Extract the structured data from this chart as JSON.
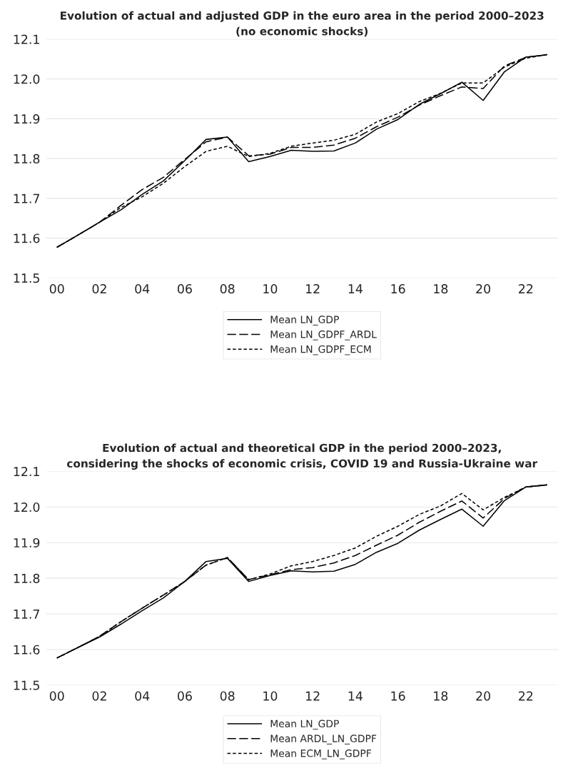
{
  "chart_data": [
    {
      "type": "line",
      "title": "Evolution of actual and adjusted GDP in the euro area in the period 2000–2023\n(no economic shocks)",
      "x": [
        2000,
        2001,
        2002,
        2003,
        2004,
        2005,
        2006,
        2007,
        2008,
        2009,
        2010,
        2011,
        2012,
        2013,
        2014,
        2015,
        2016,
        2017,
        2018,
        2019,
        2020,
        2021,
        2022,
        2023
      ],
      "series": [
        {
          "name": "Mean LN_GDP",
          "color": "#000000",
          "line_style": "solid",
          "values": [
            11.577,
            11.608,
            11.64,
            11.671,
            11.71,
            11.744,
            11.795,
            11.848,
            11.854,
            11.792,
            11.805,
            11.821,
            11.818,
            11.819,
            11.839,
            11.874,
            11.898,
            11.936,
            11.963,
            11.992,
            11.946,
            12.018,
            12.055,
            12.061
          ]
        },
        {
          "name": "Mean LN_GDPF_ARDL",
          "color": "#000000",
          "line_style": "dashed",
          "values": [
            11.577,
            11.608,
            11.64,
            11.682,
            11.722,
            11.753,
            11.798,
            11.842,
            11.854,
            11.807,
            11.811,
            11.828,
            11.828,
            11.834,
            11.851,
            11.88,
            11.904,
            11.934,
            11.958,
            11.98,
            11.976,
            12.033,
            12.054,
            12.061
          ]
        },
        {
          "name": "Mean LN_GDPF_ECM",
          "color": "#000000",
          "line_style": "dotted",
          "values": [
            11.577,
            11.608,
            11.64,
            11.677,
            11.704,
            11.738,
            11.78,
            11.818,
            11.831,
            11.805,
            11.813,
            11.831,
            11.839,
            11.846,
            11.861,
            11.892,
            11.913,
            11.943,
            11.964,
            11.99,
            11.99,
            12.03,
            12.052,
            12.061
          ]
        }
      ],
      "xlim": [
        1999.5,
        2023.5
      ],
      "xticks": [
        {
          "value": 2000,
          "label": "00"
        },
        {
          "value": 2002,
          "label": "02"
        },
        {
          "value": 2004,
          "label": "04"
        },
        {
          "value": 2006,
          "label": "06"
        },
        {
          "value": 2008,
          "label": "08"
        },
        {
          "value": 2010,
          "label": "10"
        },
        {
          "value": 2012,
          "label": "12"
        },
        {
          "value": 2014,
          "label": "14"
        },
        {
          "value": 2016,
          "label": "16"
        },
        {
          "value": 2018,
          "label": "18"
        },
        {
          "value": 2020,
          "label": "20"
        },
        {
          "value": 2022,
          "label": "22"
        }
      ],
      "ylim": [
        11.5,
        12.1
      ],
      "yticks": [
        11.5,
        11.6,
        11.7,
        11.8,
        11.9,
        {
          "value": 12,
          "label": "12.0"
        },
        12.1
      ],
      "grid": "y",
      "legend": "bottom"
    },
    {
      "type": "line",
      "title": "Evolution of actual and theoretical GDP in the period 2000–2023,\nconsidering the shocks of economic crisis, COVID 19 and Russia-Ukraine war",
      "x": [
        2000,
        2001,
        2002,
        2003,
        2004,
        2005,
        2006,
        2007,
        2008,
        2009,
        2010,
        2011,
        2012,
        2013,
        2014,
        2015,
        2016,
        2017,
        2018,
        2019,
        2020,
        2021,
        2022,
        2023
      ],
      "series": [
        {
          "name": "Mean LN_GDP",
          "color": "#000000",
          "line_style": "solid",
          "values": [
            11.576,
            11.606,
            11.635,
            11.671,
            11.709,
            11.745,
            11.791,
            11.847,
            11.856,
            11.791,
            11.808,
            11.821,
            11.818,
            11.82,
            11.839,
            11.873,
            11.898,
            11.935,
            11.965,
            11.994,
            11.946,
            12.018,
            12.056,
            12.062
          ]
        },
        {
          "name": "Mean ARDL_LN_GDPF",
          "color": "#000000",
          "line_style": "dashed",
          "values": [
            11.576,
            11.606,
            11.637,
            11.678,
            11.716,
            11.753,
            11.791,
            11.837,
            11.858,
            11.796,
            11.81,
            11.824,
            11.83,
            11.843,
            11.864,
            11.893,
            11.921,
            11.957,
            11.988,
            12.017,
            11.969,
            12.024,
            12.056,
            12.062
          ]
        },
        {
          "name": "Mean ECM_LN_GDPF",
          "color": "#000000",
          "line_style": "dotted",
          "values": [
            11.576,
            11.606,
            11.637,
            11.678,
            11.716,
            11.753,
            11.791,
            11.837,
            11.858,
            11.796,
            11.812,
            11.835,
            11.847,
            11.864,
            11.885,
            11.918,
            11.946,
            11.979,
            12.003,
            12.038,
            11.992,
            12.027,
            12.056,
            12.062
          ]
        }
      ],
      "xlim": [
        1999.5,
        2023.5
      ],
      "xticks": [
        {
          "value": 2000,
          "label": "00"
        },
        {
          "value": 2002,
          "label": "02"
        },
        {
          "value": 2004,
          "label": "04"
        },
        {
          "value": 2006,
          "label": "06"
        },
        {
          "value": 2008,
          "label": "08"
        },
        {
          "value": 2010,
          "label": "10"
        },
        {
          "value": 2012,
          "label": "12"
        },
        {
          "value": 2014,
          "label": "14"
        },
        {
          "value": 2016,
          "label": "16"
        },
        {
          "value": 2018,
          "label": "18"
        },
        {
          "value": 2020,
          "label": "20"
        },
        {
          "value": 2022,
          "label": "22"
        }
      ],
      "ylim": [
        11.5,
        12.1
      ],
      "yticks": [
        11.5,
        11.6,
        11.7,
        11.8,
        11.9,
        {
          "value": 12,
          "label": "12.0"
        },
        12.1
      ],
      "grid": "y",
      "legend": "bottom"
    }
  ]
}
